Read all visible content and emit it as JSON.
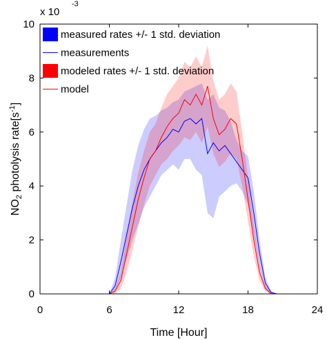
{
  "chart_data": {
    "type": "line",
    "multiplier": "x 10",
    "multiplier_exponent": "-3",
    "x_label": "Time [Hour]",
    "y_label": {
      "prefix": "NO",
      "subscript": "2",
      "middle": " photolysis rate[s",
      "superscript": "-1",
      "suffix": "]"
    },
    "xlim": [
      0,
      24
    ],
    "xticks": [
      0,
      6,
      12,
      18,
      24
    ],
    "ylim": [
      0,
      10
    ],
    "yticks": [
      0,
      2,
      4,
      6,
      8,
      10
    ],
    "x": [
      0,
      6,
      6.5,
      7,
      7.5,
      8,
      8.5,
      9,
      9.5,
      10,
      10.5,
      11,
      11.5,
      12,
      12.5,
      13,
      13.5,
      14,
      14.5,
      15,
      15.5,
      16,
      16.5,
      17,
      17.5,
      18,
      18.5,
      19,
      19.5,
      20,
      20.5,
      24
    ],
    "legend": "upper left",
    "series": [
      {
        "name": "measured rates +/- 1 std. deviation",
        "kind": "band",
        "color": "#0000ff",
        "lower": [
          0,
          0,
          0.1,
          0.6,
          1.3,
          2.0,
          2.6,
          3.2,
          3.6,
          4.0,
          4.4,
          4.6,
          4.8,
          4.6,
          5.0,
          5.0,
          4.6,
          4.4,
          3.0,
          2.8,
          3.6,
          3.8,
          4.0,
          4.1,
          3.8,
          3.3,
          2.2,
          1.0,
          0.2,
          0,
          0,
          0
        ],
        "upper": [
          0,
          0,
          0.6,
          2.0,
          3.3,
          4.6,
          5.5,
          6.1,
          6.5,
          6.6,
          6.8,
          6.9,
          7.1,
          7.2,
          7.5,
          7.6,
          7.7,
          7.8,
          7.2,
          7.4,
          6.9,
          6.8,
          6.4,
          5.7,
          5.3,
          5.1,
          3.8,
          2.0,
          0.6,
          0.1,
          0,
          0
        ]
      },
      {
        "name": "measurements",
        "kind": "line",
        "color": "#0000ff",
        "values": [
          0,
          0,
          0.3,
          1.2,
          2.2,
          3.2,
          4.0,
          4.6,
          5.0,
          5.3,
          5.6,
          5.8,
          6.1,
          6.0,
          6.4,
          6.5,
          6.3,
          6.5,
          5.2,
          5.6,
          5.3,
          5.5,
          5.2,
          4.9,
          4.6,
          4.3,
          3.0,
          1.5,
          0.4,
          0.05,
          0,
          0
        ]
      },
      {
        "name": "modeled rates +/- 1 std. deviation",
        "kind": "band",
        "color": "#ff0000",
        "lower": [
          0,
          0,
          0,
          0.2,
          0.8,
          1.6,
          2.5,
          3.3,
          4.0,
          4.4,
          4.8,
          5.0,
          5.3,
          5.5,
          5.8,
          5.7,
          6.0,
          5.6,
          6.2,
          5.2,
          4.7,
          4.9,
          5.2,
          5.0,
          4.0,
          2.7,
          1.4,
          0.5,
          0.1,
          0,
          0,
          0
        ],
        "upper": [
          0,
          0,
          0.2,
          0.8,
          2.2,
          3.4,
          4.5,
          5.3,
          6.0,
          6.3,
          6.9,
          7.4,
          7.7,
          8.0,
          8.6,
          8.4,
          8.8,
          8.4,
          9.2,
          7.9,
          7.2,
          7.4,
          7.8,
          7.5,
          6.0,
          4.3,
          2.6,
          1.1,
          0.3,
          0.05,
          0,
          0
        ]
      },
      {
        "name": "model",
        "kind": "line",
        "color": "#ff0000",
        "values": [
          0,
          0,
          0.1,
          0.5,
          1.5,
          2.5,
          3.5,
          4.3,
          5.0,
          5.3,
          5.8,
          6.2,
          6.5,
          6.7,
          7.2,
          7.0,
          7.4,
          7.0,
          7.7,
          6.5,
          5.9,
          6.1,
          6.5,
          6.3,
          5.0,
          3.5,
          2.0,
          0.8,
          0.2,
          0,
          0,
          0
        ]
      }
    ]
  }
}
